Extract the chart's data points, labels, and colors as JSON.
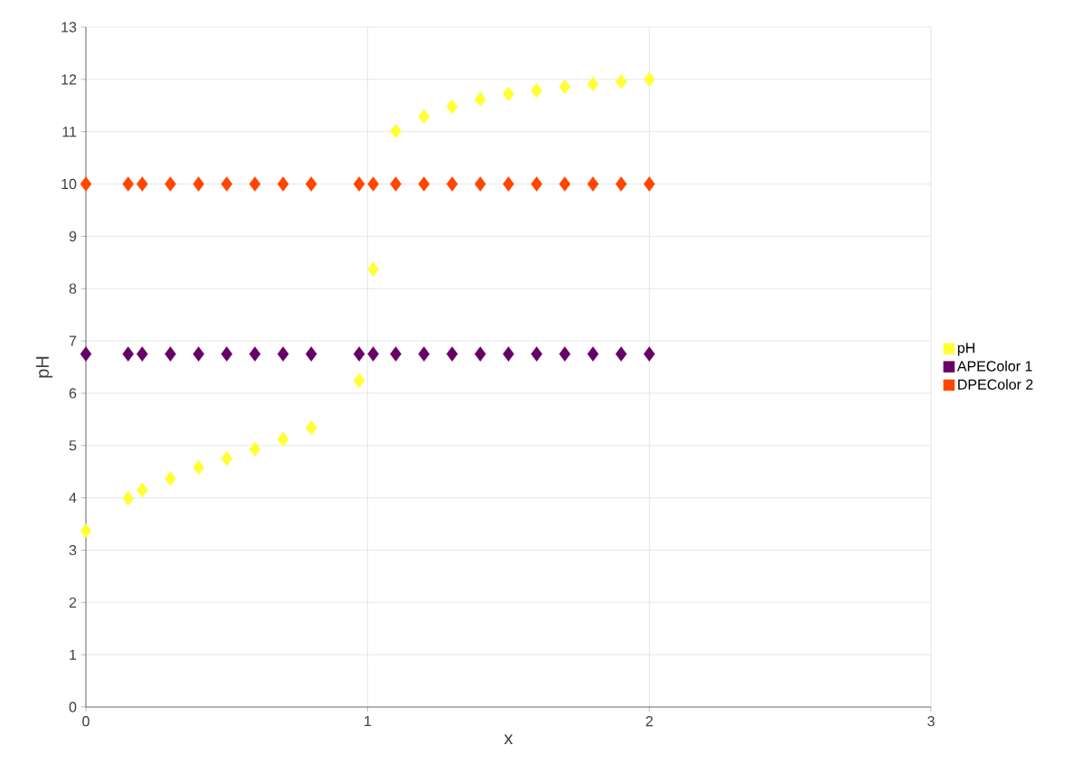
{
  "chart_data": {
    "type": "scatter",
    "xlabel": "x",
    "ylabel": "pH",
    "xlim": [
      0,
      3
    ],
    "xticks": [
      0,
      1,
      2,
      3
    ],
    "ylim": [
      0,
      13
    ],
    "yticks": [
      0,
      1,
      2,
      3,
      4,
      5,
      6,
      7,
      8,
      9,
      10,
      11,
      12,
      13
    ],
    "grid": true,
    "legend": "right",
    "marker": "diamond",
    "x": [
      0,
      0.15,
      0.2,
      0.3,
      0.4,
      0.5,
      0.6,
      0.7,
      0.8,
      0.97,
      1.02,
      1.1,
      1.2,
      1.3,
      1.4,
      1.5,
      1.6,
      1.7,
      1.8,
      1.9,
      2.0
    ],
    "series": [
      {
        "name": "pH",
        "color": "#ffff33",
        "values": [
          3.37,
          3.99,
          4.15,
          4.37,
          4.58,
          4.75,
          4.93,
          5.12,
          5.34,
          6.24,
          8.37,
          11.01,
          11.29,
          11.48,
          11.62,
          11.72,
          11.79,
          11.86,
          11.91,
          11.96,
          12.0
        ]
      },
      {
        "name": "APEColor 1",
        "color": "#660066",
        "values": [
          6.75,
          6.75,
          6.75,
          6.75,
          6.75,
          6.75,
          6.75,
          6.75,
          6.75,
          6.75,
          6.75,
          6.75,
          6.75,
          6.75,
          6.75,
          6.75,
          6.75,
          6.75,
          6.75,
          6.75,
          6.75
        ]
      },
      {
        "name": "DPEColor 2",
        "color": "#ff4500",
        "values": [
          10,
          10,
          10,
          10,
          10,
          10,
          10,
          10,
          10,
          10,
          10,
          10,
          10,
          10,
          10,
          10,
          10,
          10,
          10,
          10,
          10
        ]
      }
    ]
  }
}
